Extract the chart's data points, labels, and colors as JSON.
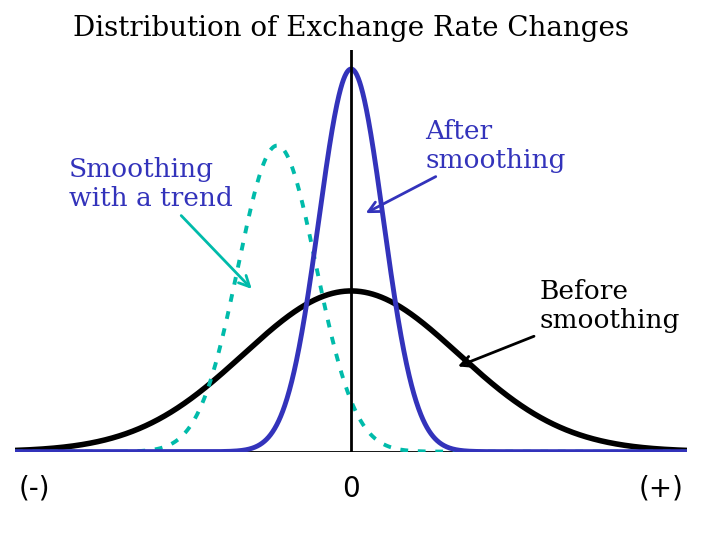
{
  "title": "Distribution of Exchange Rate Changes",
  "title_fontsize": 20,
  "background_color": "#ffffff",
  "xlim": [
    -5,
    5
  ],
  "ylim": [
    0,
    1.05
  ],
  "before_color": "#000000",
  "before_lw": 4.0,
  "before_mean": 0.0,
  "before_std": 1.6,
  "before_peak": 0.42,
  "after_color": "#3333bb",
  "after_lw": 3.5,
  "after_mean": 0.0,
  "after_std": 0.48,
  "after_peak": 1.0,
  "trend_color": "#00bbaa",
  "trend_lw": 2.8,
  "trend_mean": -1.1,
  "trend_std": 0.58,
  "trend_peak": 0.8,
  "label_color": "#3333bb",
  "label_before_color": "#000000",
  "label_fontsize": 19,
  "xlabel_neg": "(-)",
  "xlabel_pos": "(+)",
  "xlabel_zero": "0",
  "xlabel_fontsize": 20,
  "vline_color": "#000000",
  "vline_lw": 2.0,
  "baseline_color": "#000000",
  "baseline_lw": 2.0
}
